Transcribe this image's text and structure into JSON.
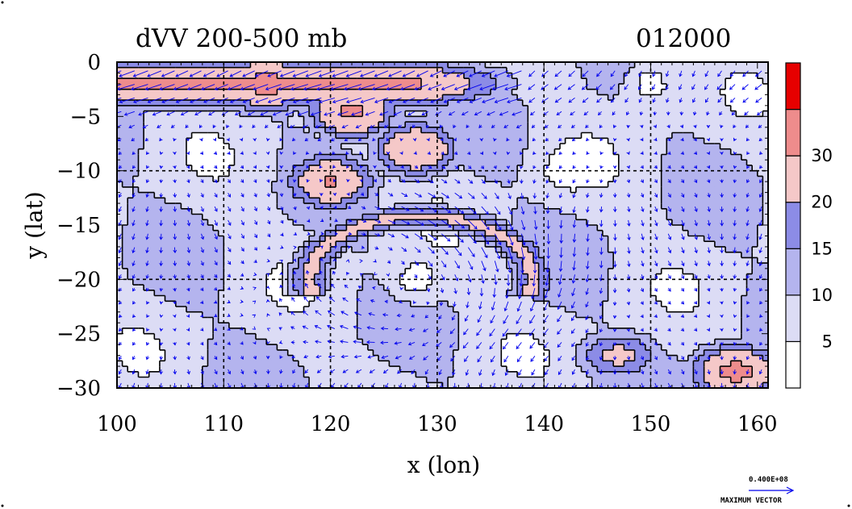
{
  "chart_data": {
    "type": "heatmap",
    "title": "dVV 200-500 mb",
    "subtitle": "012000",
    "xlabel": "x (lon)",
    "ylabel": "y (lat)",
    "xlim": [
      100,
      161
    ],
    "ylim": [
      -30,
      0
    ],
    "x_ticks": [
      "100",
      "110",
      "120",
      "130",
      "140",
      "150",
      "160"
    ],
    "y_ticks": [
      "0",
      "-5",
      "-10",
      "-15",
      "-20",
      "-25",
      "-30"
    ],
    "grid_lon": [
      110,
      120,
      130,
      140,
      150
    ],
    "grid_lat": [
      -10,
      -20
    ],
    "colorbar": {
      "levels": [
        0,
        5,
        10,
        15,
        20,
        30,
        35
      ],
      "tick_labels": [
        "5",
        "10",
        "15",
        "20",
        "30"
      ],
      "colors": [
        "#ffffff",
        "#dcdcf5",
        "#b4b4ee",
        "#8c8ce6",
        "#f5c8c8",
        "#ee8c8c",
        "#e60000"
      ]
    },
    "vector_color": "#0000ee",
    "reference_vector": {
      "value_label": "0.400E+08",
      "caption": "MAXIMUM VECTOR"
    },
    "features": [
      {
        "kind": "jet_band",
        "lon": [
          100,
          161
        ],
        "lat": [
          -0.5,
          -3.5
        ],
        "value": 32
      },
      {
        "kind": "max",
        "lon": 114,
        "lat": -2,
        "value": 34
      },
      {
        "kind": "max",
        "lon": 122,
        "lat": -4.5,
        "value": 32
      },
      {
        "kind": "max",
        "lon": 120,
        "lat": -11,
        "value": 31
      },
      {
        "kind": "max",
        "lon": 128,
        "lat": -8,
        "value": 30
      },
      {
        "kind": "ring",
        "lon": 128.5,
        "lat": -20,
        "value": 22
      },
      {
        "kind": "max",
        "lon": 147,
        "lat": -27,
        "value": 22
      },
      {
        "kind": "max",
        "lon": 158,
        "lat": -28.5,
        "value": 33
      },
      {
        "kind": "min",
        "lon": 128,
        "lat": -20,
        "value": 3
      },
      {
        "kind": "min",
        "lon": 142,
        "lat": -10,
        "value": 3
      },
      {
        "kind": "min",
        "lon": 150,
        "lat": -2,
        "value": 3
      }
    ]
  }
}
